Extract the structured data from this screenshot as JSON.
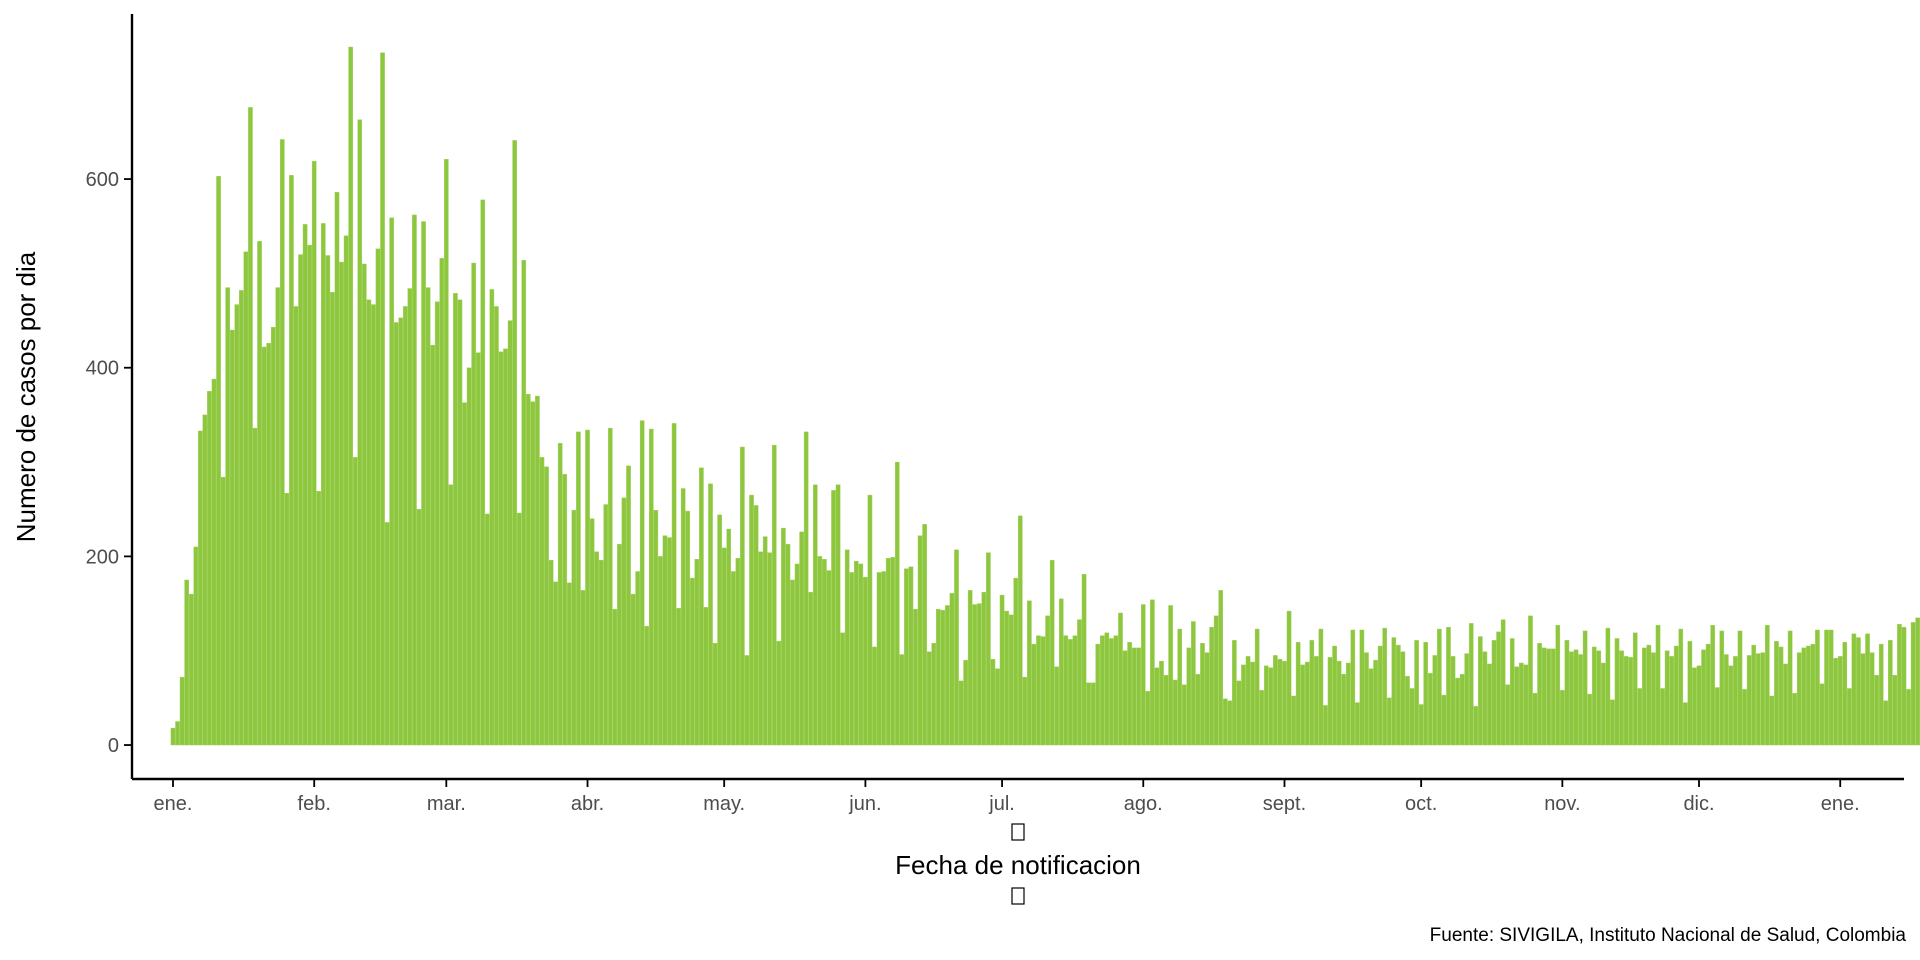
{
  "chart_data": {
    "type": "bar",
    "title": "",
    "xlabel": "Fecha de notificacion",
    "ylabel": "Numero de casos por dia",
    "caption": "Fuente: SIVIGILA, Instituto Nacional de Salud, Colombia",
    "bar_color": "#8dc63f",
    "bar_edge_color": "#a6d45e",
    "axis_color": "#000000",
    "tick_label_color": "#4d4d4d",
    "grid": false,
    "ylim": [
      -36,
      775
    ],
    "y_ticks": [
      0,
      200,
      400,
      600
    ],
    "x_domain_days": [
      -9,
      380
    ],
    "x_tick_days": [
      0,
      31,
      60,
      91,
      121,
      152,
      182,
      213,
      244,
      274,
      305,
      335,
      366
    ],
    "x_tick_labels": [
      "ene.",
      "feb.",
      "mar.",
      "abr.",
      "may.",
      "jun.",
      "jul.",
      "ago.",
      "sept.",
      "oct.",
      "nov.",
      "dic.",
      "ene."
    ],
    "start_day": 0,
    "values": [
      18,
      25,
      72,
      175,
      160,
      210,
      333,
      350,
      375,
      388,
      603,
      284,
      485,
      440,
      467,
      482,
      523,
      676,
      336,
      534,
      422,
      426,
      443,
      485,
      642,
      267,
      604,
      465,
      520,
      552,
      530,
      619,
      269,
      553,
      519,
      480,
      586,
      512,
      540,
      740,
      305,
      663,
      510,
      472,
      467,
      526,
      734,
      236,
      559,
      448,
      453,
      465,
      484,
      562,
      250,
      555,
      485,
      424,
      470,
      516,
      621,
      276,
      479,
      472,
      363,
      400,
      511,
      416,
      578,
      245,
      483,
      465,
      417,
      420,
      450,
      641,
      246,
      514,
      372,
      364,
      370,
      305,
      295,
      196,
      173,
      320,
      287,
      172,
      249,
      332,
      164,
      334,
      240,
      205,
      196,
      255,
      336,
      144,
      213,
      262,
      296,
      160,
      184,
      344,
      126,
      335,
      249,
      200,
      222,
      220,
      341,
      145,
      272,
      248,
      177,
      197,
      294,
      146,
      277,
      108,
      244,
      209,
      229,
      184,
      198,
      316,
      95,
      265,
      254,
      205,
      221,
      204,
      318,
      110,
      230,
      213,
      175,
      192,
      226,
      332,
      162,
      276,
      200,
      197,
      185,
      270,
      276,
      119,
      207,
      183,
      195,
      192,
      178,
      265,
      104,
      183,
      184,
      198,
      199,
      300,
      96,
      187,
      189,
      144,
      222,
      234,
      99,
      108,
      144,
      143,
      148,
      161,
      207,
      68,
      90,
      164,
      149,
      150,
      162,
      204,
      91,
      81,
      159,
      142,
      138,
      177,
      243,
      72,
      153,
      107,
      116,
      115,
      137,
      196,
      83,
      155,
      116,
      112,
      116,
      133,
      181,
      66,
      66,
      107,
      116,
      119,
      113,
      116,
      140,
      100,
      109,
      103,
      103,
      149,
      57,
      154,
      82,
      89,
      74,
      148,
      69,
      123,
      64,
      103,
      131,
      75,
      108,
      98,
      125,
      137,
      164,
      49,
      47,
      111,
      68,
      85,
      94,
      88,
      123,
      58,
      84,
      82,
      95,
      91,
      89,
      142,
      52,
      109,
      85,
      88,
      111,
      94,
      123,
      42,
      93,
      105,
      89,
      75,
      87,
      122,
      45,
      122,
      98,
      81,
      90,
      105,
      124,
      50,
      114,
      106,
      99,
      73,
      60,
      111,
      43,
      109,
      76,
      95,
      123,
      53,
      125,
      94,
      71,
      75,
      97,
      129,
      41,
      115,
      99,
      86,
      111,
      120,
      133,
      64,
      113,
      83,
      87,
      85,
      137,
      55,
      108,
      103,
      102,
      102,
      127,
      58,
      111,
      99,
      101,
      96,
      121,
      54,
      104,
      100,
      87,
      124,
      48,
      113,
      100,
      94,
      93,
      119,
      60,
      103,
      106,
      98,
      127,
      60,
      100,
      94,
      105,
      123,
      45,
      110,
      82,
      84,
      101,
      107,
      127,
      61,
      121,
      96,
      84,
      94,
      121,
      59,
      95,
      106,
      97,
      98,
      127,
      52,
      110,
      104,
      86,
      121,
      55,
      98,
      103,
      105,
      107,
      122,
      65,
      122,
      122,
      92,
      94,
      109,
      60,
      118,
      114,
      97,
      118,
      98,
      74,
      107,
      47,
      111,
      74,
      128,
      125,
      59,
      130,
      135,
      99,
      65
    ]
  }
}
